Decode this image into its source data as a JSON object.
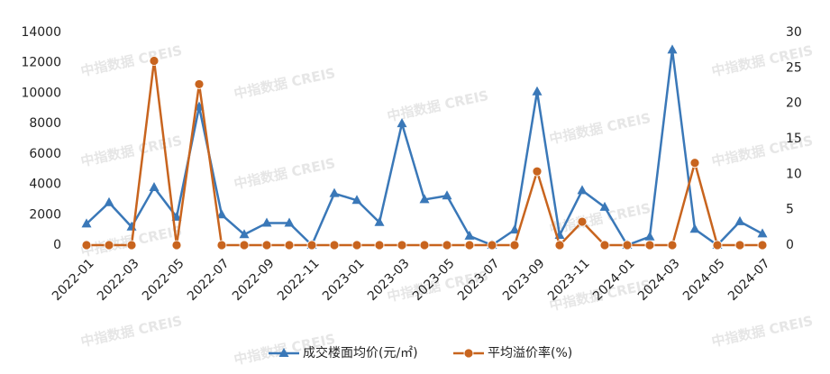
{
  "chart_data": {
    "type": "line",
    "watermark": "中指数据 CREIS",
    "categories": [
      "2022-01",
      null,
      "2022-03",
      null,
      "2022-05",
      null,
      "2022-07",
      null,
      "2022-09",
      null,
      "2022-11",
      null,
      "2023-01",
      null,
      "2023-03",
      null,
      "2023-05",
      null,
      "2023-07",
      null,
      "2023-09",
      null,
      "2023-11",
      null,
      "2024-01",
      null,
      "2024-03",
      null,
      "2024-05",
      null,
      "2024-07"
    ],
    "series": [
      {
        "name": "成交楼面均价(元/㎡)",
        "color": "#3a78b8",
        "marker": "triangle",
        "values": [
          1400,
          2800,
          1200,
          3800,
          1850,
          9100,
          2000,
          700,
          1450,
          1450,
          0,
          3400,
          2950,
          1500,
          8000,
          3000,
          3250,
          600,
          0,
          1000,
          10100,
          650,
          3600,
          2500,
          0,
          550,
          12850,
          1050,
          0,
          1550,
          750
        ]
      },
      {
        "name": "平均溢价率(%)",
        "color": "#c8641e",
        "marker": "circle",
        "axis": "y2",
        "values": [
          0,
          0,
          0,
          26,
          0,
          22.7,
          0,
          0,
          0,
          0,
          0,
          0,
          0,
          0,
          0,
          0,
          0,
          0,
          0,
          0,
          10.4,
          0,
          3.3,
          0,
          0,
          0,
          0,
          11.6,
          0,
          0,
          0
        ]
      }
    ],
    "ylim": [
      0,
      14000
    ],
    "yticks": [
      0,
      2000,
      4000,
      6000,
      8000,
      10000,
      12000,
      14000
    ],
    "y2lim": [
      0,
      30
    ],
    "y2ticks": [
      0,
      5,
      10,
      15,
      20,
      25,
      30
    ],
    "legend": "bottom"
  }
}
